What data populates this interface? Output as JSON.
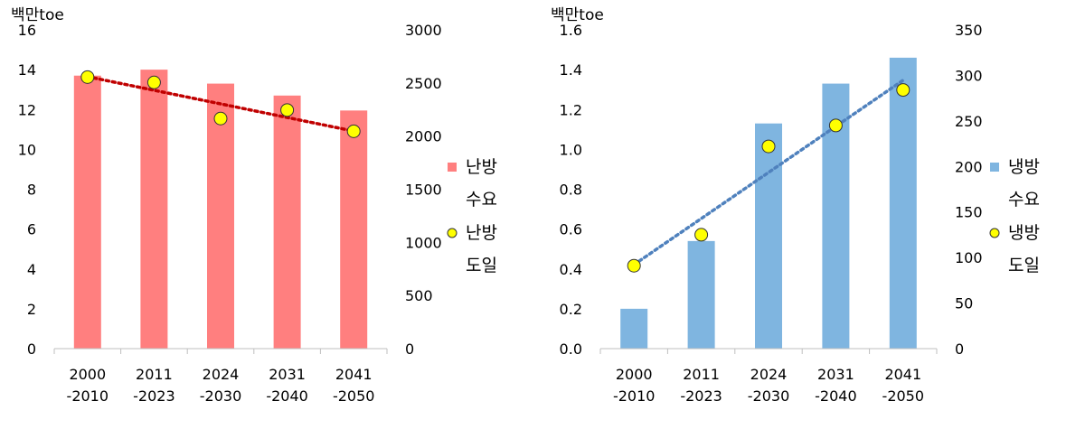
{
  "chart_data": [
    {
      "type": "bar",
      "ylabel": "백만toe",
      "categories": [
        [
          "2000",
          "-2010"
        ],
        [
          "2011",
          "-2023"
        ],
        [
          "2024",
          "-2030"
        ],
        [
          "2031",
          "-2040"
        ],
        [
          "2041",
          "-2050"
        ]
      ],
      "ylim": [
        0,
        16
      ],
      "yticks": [
        0,
        2,
        4,
        6,
        8,
        10,
        12,
        14,
        16
      ],
      "y2lim": [
        0,
        3000
      ],
      "y2ticks": [
        0,
        500,
        1000,
        1500,
        2000,
        2500,
        3000
      ],
      "series": [
        {
          "name": [
            "난방",
            "수요"
          ],
          "kind": "bar",
          "axis": "left",
          "color": "#ff7f7f",
          "values": [
            13.7,
            14.0,
            13.3,
            12.7,
            11.95
          ]
        },
        {
          "name": [
            "난방",
            "도일"
          ],
          "kind": "scatter",
          "axis": "right",
          "color": "#ffff00",
          "values": [
            2555,
            2505,
            2165,
            2245,
            2045
          ]
        }
      ],
      "trendline": {
        "series": 1,
        "color": "#c00000",
        "style": "dotted"
      },
      "grid": false,
      "legend": "right"
    },
    {
      "type": "bar",
      "ylabel": "백만toe",
      "categories": [
        [
          "2000",
          "-2010"
        ],
        [
          "2011",
          "-2023"
        ],
        [
          "2024",
          "-2030"
        ],
        [
          "2031",
          "-2040"
        ],
        [
          "2041",
          "-2050"
        ]
      ],
      "ylim": [
        0,
        1.6
      ],
      "yticks": [
        "0.0",
        "0.2",
        "0.4",
        "0.6",
        "0.8",
        "1.0",
        "1.2",
        "1.4",
        "1.6"
      ],
      "y2lim": [
        0,
        350
      ],
      "y2ticks": [
        0,
        50,
        100,
        150,
        200,
        250,
        300,
        350
      ],
      "series": [
        {
          "name": [
            "냉방",
            "수요"
          ],
          "kind": "bar",
          "axis": "left",
          "color": "#7fb5e0",
          "values": [
            0.2,
            0.54,
            1.13,
            1.33,
            1.46
          ]
        },
        {
          "name": [
            "냉방",
            "도일"
          ],
          "kind": "scatter",
          "axis": "right",
          "color": "#ffff00",
          "values": [
            91,
            125,
            222,
            245,
            284
          ]
        }
      ],
      "trendline": {
        "series": 1,
        "color": "#4f81bd",
        "style": "dotted"
      },
      "grid": false,
      "legend": "right"
    }
  ]
}
